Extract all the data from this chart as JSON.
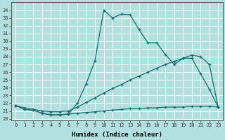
{
  "bg_color": "#b2e0e0",
  "grid_color": "#ffffff",
  "line_color": "#1a6b6b",
  "xlabel": "Humidex (Indice chaleur)",
  "xticks": [
    0,
    1,
    2,
    3,
    4,
    5,
    6,
    7,
    8,
    9,
    10,
    11,
    12,
    13,
    14,
    15,
    16,
    17,
    18,
    19,
    20,
    21,
    22,
    23
  ],
  "yticks": [
    20,
    21,
    22,
    23,
    24,
    25,
    26,
    27,
    28,
    29,
    30,
    31,
    32,
    33,
    34
  ],
  "xlim": [
    -0.5,
    23.5
  ],
  "ylim": [
    19.8,
    35.0
  ],
  "curve1_x": [
    0,
    1,
    2,
    3,
    4,
    5,
    6,
    7,
    8,
    9,
    10,
    11,
    12,
    13,
    14,
    15,
    16,
    17,
    18,
    19,
    20,
    21,
    22,
    23
  ],
  "curve1_y": [
    21.7,
    21.2,
    21.1,
    20.7,
    20.5,
    20.5,
    20.6,
    22.0,
    24.5,
    27.5,
    34.0,
    33.0,
    33.5,
    33.4,
    31.5,
    29.8,
    29.8,
    28.3,
    27.0,
    27.8,
    27.8,
    25.8,
    23.8,
    21.5
  ],
  "curve2_x": [
    0,
    1,
    2,
    3,
    4,
    5,
    6,
    7,
    8,
    9,
    10,
    11,
    12,
    13,
    14,
    15,
    16,
    17,
    18,
    19,
    20,
    21,
    22,
    23
  ],
  "curve2_y": [
    21.7,
    21.4,
    21.2,
    21.0,
    20.9,
    20.9,
    21.0,
    21.5,
    22.1,
    22.7,
    23.3,
    23.9,
    24.4,
    25.0,
    25.5,
    26.0,
    26.5,
    27.0,
    27.4,
    27.8,
    28.2,
    28.0,
    27.0,
    21.5
  ],
  "curve3_x": [
    0,
    1,
    2,
    3,
    4,
    5,
    6,
    7,
    8,
    9,
    10,
    11,
    12,
    13,
    14,
    15,
    16,
    17,
    18,
    19,
    20,
    21,
    22,
    23
  ],
  "curve3_y": [
    21.7,
    21.2,
    21.1,
    20.7,
    20.5,
    20.5,
    20.6,
    20.7,
    20.8,
    20.9,
    21.0,
    21.1,
    21.2,
    21.3,
    21.3,
    21.4,
    21.4,
    21.5,
    21.5,
    21.5,
    21.6,
    21.6,
    21.6,
    21.5
  ]
}
